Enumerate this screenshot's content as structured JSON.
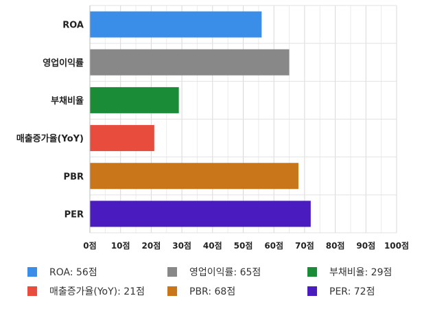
{
  "chart_data": {
    "type": "bar",
    "orientation": "horizontal",
    "categories": [
      "ROA",
      "영업이익률",
      "부채비율",
      "매출증가율(YoY)",
      "PBR",
      "PER"
    ],
    "values": [
      56,
      65,
      29,
      21,
      68,
      72
    ],
    "colors": [
      "#3b8ee8",
      "#888888",
      "#1a8c37",
      "#e84c3d",
      "#c87619",
      "#4a1cbf"
    ],
    "xlim": [
      0,
      100
    ],
    "xticks": [
      0,
      10,
      20,
      30,
      40,
      50,
      60,
      70,
      80,
      90,
      100
    ],
    "tick_suffix": "점",
    "grid": true,
    "legend_position": "bottom",
    "legend": [
      {
        "label": "ROA: 56점",
        "color": "#3b8ee8"
      },
      {
        "label": "영업이익률: 65점",
        "color": "#888888"
      },
      {
        "label": "부채비율: 29점",
        "color": "#1a8c37"
      },
      {
        "label": "매출증가율(YoY): 21점",
        "color": "#e84c3d"
      },
      {
        "label": "PBR: 68점",
        "color": "#c87619"
      },
      {
        "label": "PER: 72점",
        "color": "#4a1cbf"
      }
    ]
  }
}
